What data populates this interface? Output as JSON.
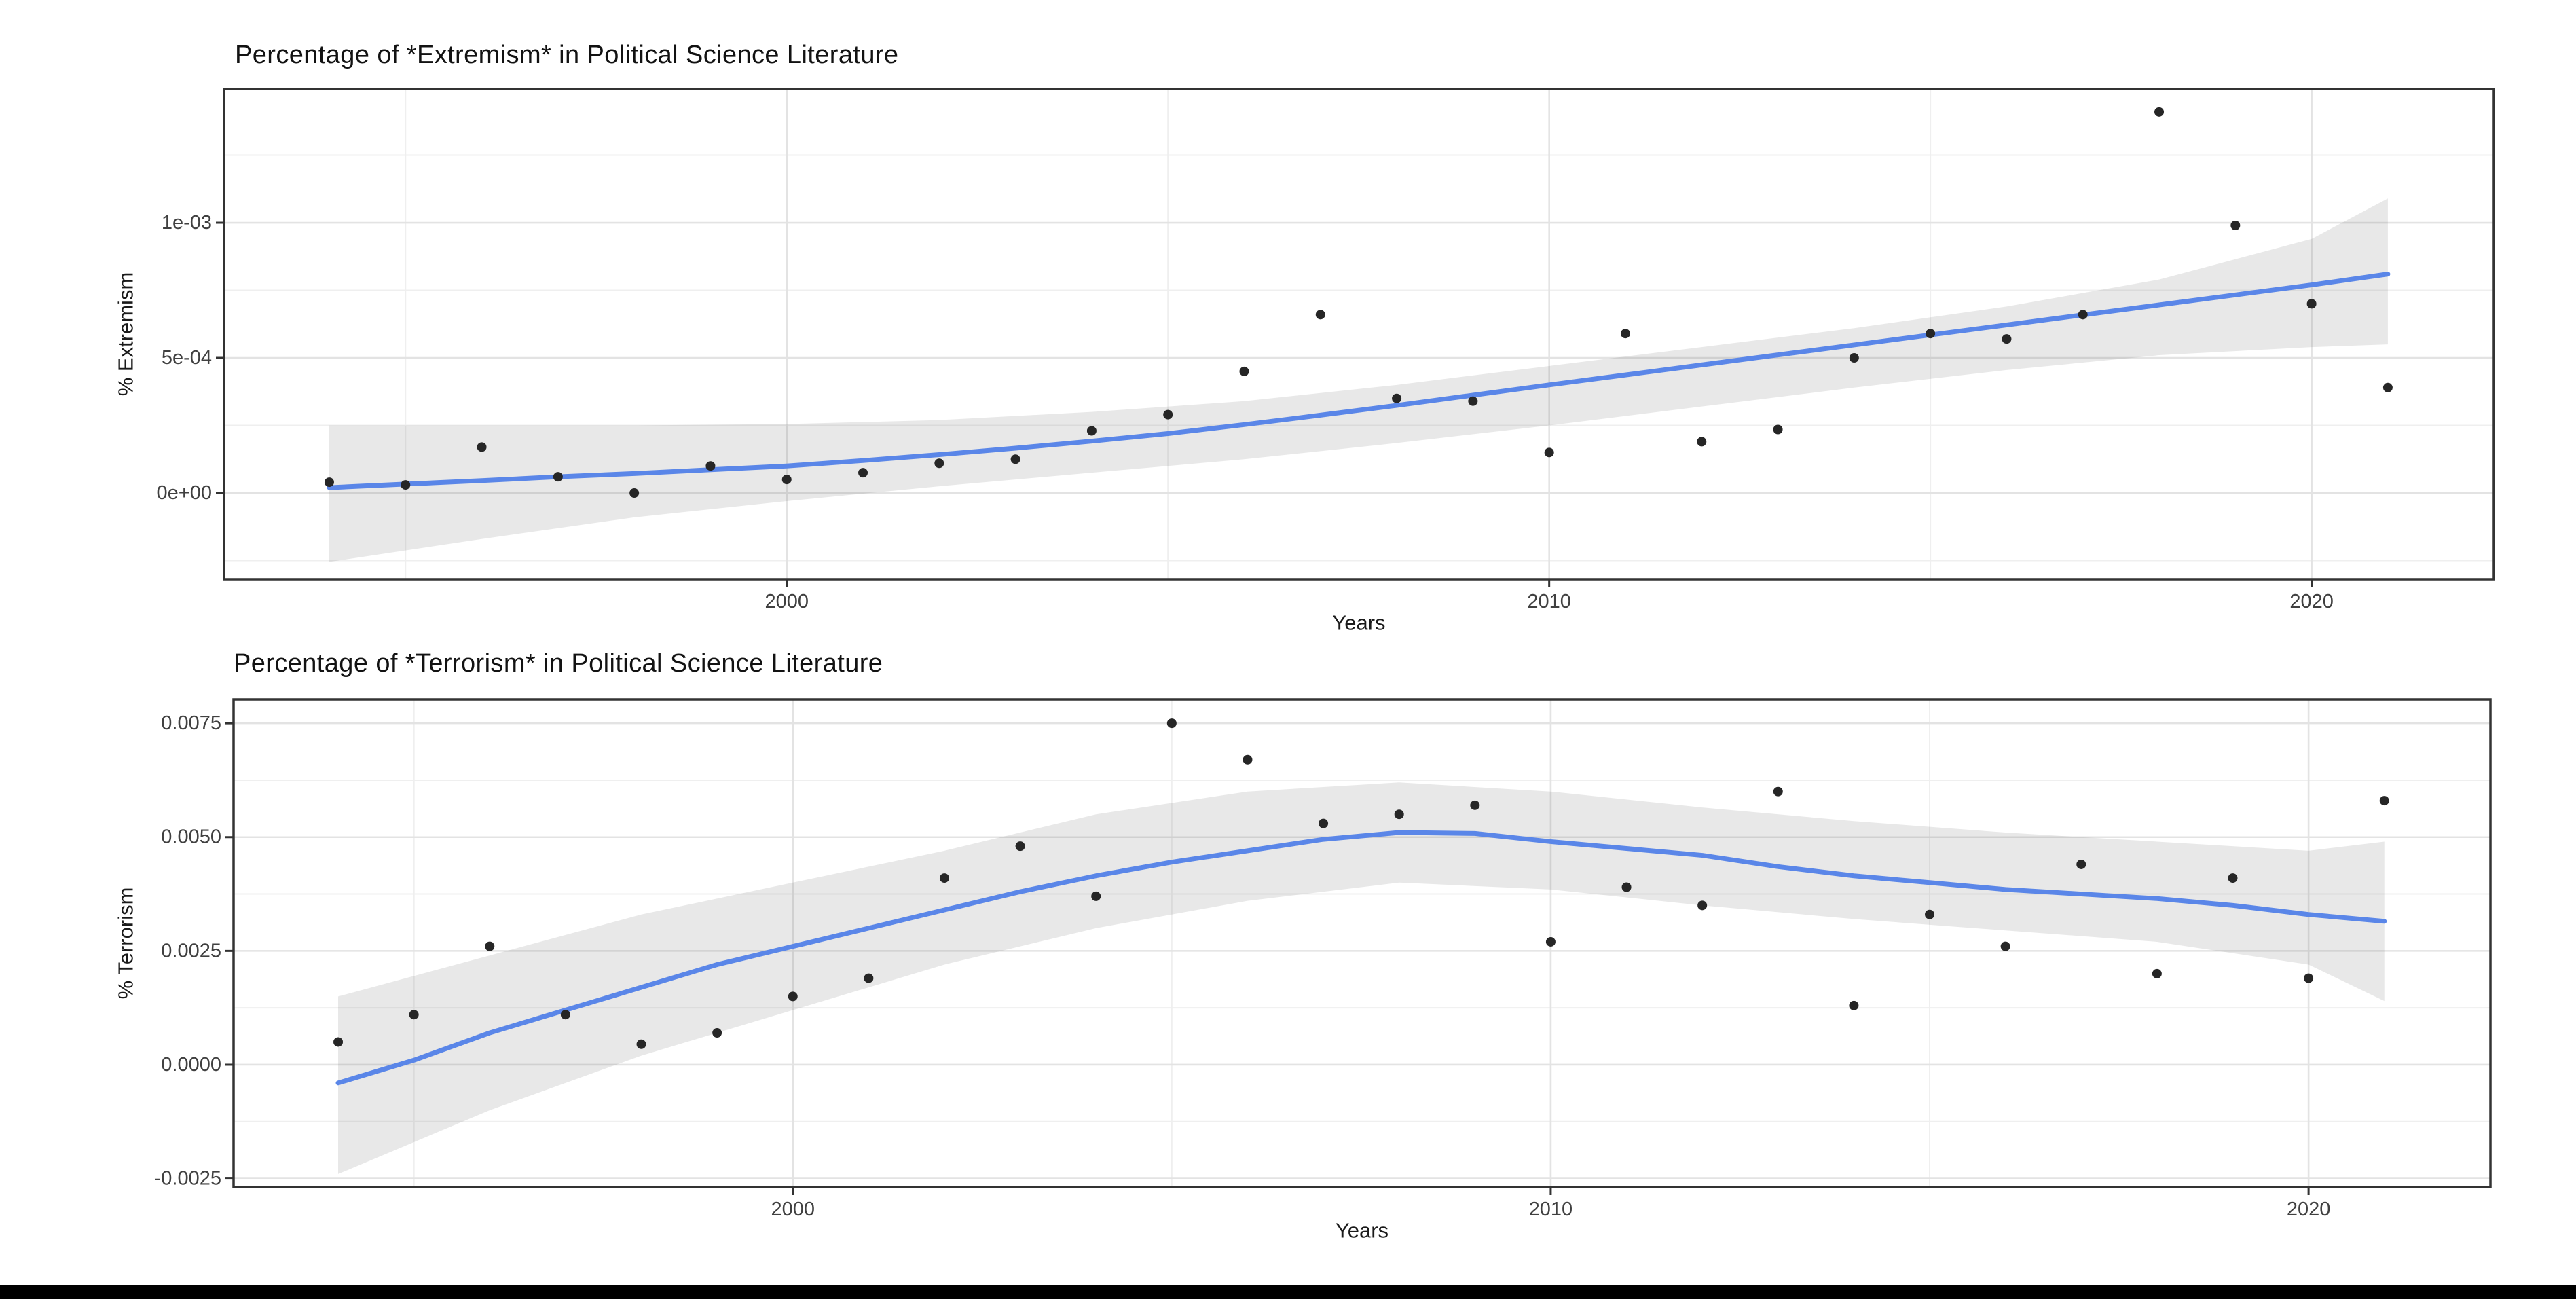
{
  "page": {
    "background": "#ffffff",
    "bottom_bar_color": "#000000"
  },
  "chart_data": [
    {
      "type": "scatter",
      "title": "Percentage of *Extremism* in Political Science Literature",
      "xlabel": "Years",
      "ylabel": "% Extremism",
      "legend": "none",
      "grid": "on",
      "xlim": [
        1992.62,
        2022.39
      ],
      "ylim": [
        -0.000319,
        0.001495
      ],
      "x_ticks": [
        {
          "value": 2000,
          "label": "2000"
        },
        {
          "value": 2010,
          "label": "2010"
        },
        {
          "value": 2020,
          "label": "2020"
        }
      ],
      "x_minor": [
        1995,
        2005,
        2015
      ],
      "y_ticks": [
        {
          "value": 0,
          "label": "0e+00"
        },
        {
          "value": 0.0005,
          "label": "5e-04"
        },
        {
          "value": 0.001,
          "label": "1e-03"
        }
      ],
      "y_minor": [
        -0.00025,
        0.00025,
        0.00075,
        0.00125
      ],
      "points": {
        "years": [
          1994,
          1995,
          1996,
          1997,
          1998,
          1999,
          2000,
          2001,
          2002,
          2003,
          2004,
          2005,
          2006,
          2007,
          2008,
          2009,
          2010,
          2011,
          2012,
          2013,
          2014,
          2015,
          2016,
          2017,
          2018,
          2019,
          2020,
          2021
        ],
        "values": [
          4e-05,
          3e-05,
          0.00017,
          6e-05,
          0.0,
          0.0001,
          5e-05,
          7.5e-05,
          0.00011,
          0.000125,
          0.00023,
          0.00029,
          0.00045,
          0.00066,
          0.00035,
          0.00034,
          0.00015,
          0.00059,
          0.00019,
          0.000235,
          0.0005,
          0.00059,
          0.00057,
          0.00066,
          0.00141,
          0.00099,
          0.0007,
          0.00039
        ]
      },
      "smooth_line": {
        "years": [
          1994,
          1995,
          1996,
          1997,
          1998,
          1999,
          2000,
          2001,
          2002,
          2003,
          2004,
          2005,
          2006,
          2007,
          2008,
          2009,
          2010,
          2011,
          2012,
          2013,
          2014,
          2015,
          2016,
          2017,
          2018,
          2019,
          2020,
          2021
        ],
        "values": [
          2e-05,
          3.3e-05,
          4.6e-05,
          6e-05,
          7.2e-05,
          8.6e-05,
          0.0001,
          0.00012,
          0.000142,
          0.000166,
          0.000192,
          0.00022,
          0.000253,
          0.000288,
          0.000324,
          0.000362,
          0.0004,
          0.000437,
          0.000474,
          0.000511,
          0.000548,
          0.000585,
          0.000622,
          0.000659,
          0.000696,
          0.000733,
          0.00077,
          0.00081
        ]
      },
      "ribbon": {
        "years": [
          1994,
          1996,
          1998,
          2000,
          2002,
          2004,
          2006,
          2008,
          2010,
          2012,
          2014,
          2016,
          2018,
          2020,
          2021
        ],
        "lower": [
          -0.000255,
          -0.00017,
          -9e-05,
          -3e-05,
          2.5e-05,
          7.5e-05,
          0.000125,
          0.000185,
          0.00025,
          0.00032,
          0.00039,
          0.000455,
          0.00051,
          0.00054,
          0.00055
        ],
        "upper": [
          0.00025,
          0.00025,
          0.00025,
          0.000255,
          0.00027,
          0.0003,
          0.00034,
          0.0004,
          0.00047,
          0.00054,
          0.00061,
          0.00069,
          0.00079,
          0.00094,
          0.00109
        ]
      },
      "colors": {
        "line": "#5a86e8",
        "ribbon": "rgba(110,110,110,0.16)",
        "point": "#262626",
        "grid_major": "#e3e3e3",
        "grid_minor": "#efefef",
        "panel_border": "#333333"
      }
    },
    {
      "type": "scatter",
      "title": "Percentage of *Terrorism* in Political Science Literature",
      "xlabel": "Years",
      "ylabel": "% Terrorism",
      "legend": "none",
      "grid": "on",
      "xlim": [
        1992.62,
        2022.4
      ],
      "ylim": [
        -0.002685,
        0.008024
      ],
      "x_ticks": [
        {
          "value": 2000,
          "label": "2000"
        },
        {
          "value": 2010,
          "label": "2010"
        },
        {
          "value": 2020,
          "label": "2020"
        }
      ],
      "x_minor": [
        1995,
        2005,
        2015
      ],
      "y_ticks": [
        {
          "value": -0.0025,
          "label": "-0.0025"
        },
        {
          "value": 0.0,
          "label": "0.0000"
        },
        {
          "value": 0.0025,
          "label": "0.0025"
        },
        {
          "value": 0.005,
          "label": "0.0050"
        },
        {
          "value": 0.0075,
          "label": "0.0075"
        }
      ],
      "y_minor": [
        -0.00125,
        0.00125,
        0.00375,
        0.00625
      ],
      "points": {
        "years": [
          1994,
          1995,
          1996,
          1997,
          1998,
          1999,
          2000,
          2001,
          2002,
          2003,
          2004,
          2005,
          2006,
          2007,
          2008,
          2009,
          2010,
          2011,
          2012,
          2013,
          2014,
          2015,
          2016,
          2017,
          2018,
          2019,
          2020,
          2021
        ],
        "values": [
          0.0005,
          0.0011,
          0.0026,
          0.0011,
          0.00045,
          0.0007,
          0.0015,
          0.0019,
          0.0041,
          0.0048,
          0.0037,
          0.0075,
          0.0067,
          0.0053,
          0.0055,
          0.0057,
          0.0027,
          0.0039,
          0.0035,
          0.006,
          0.0013,
          0.0033,
          0.0026,
          0.0044,
          0.002,
          0.0041,
          0.0019,
          0.0058
        ]
      },
      "smooth_line": {
        "years": [
          1994,
          1995,
          1996,
          1997,
          1998,
          1999,
          2000,
          2001,
          2002,
          2003,
          2004,
          2005,
          2006,
          2007,
          2008,
          2009,
          2010,
          2011,
          2012,
          2013,
          2014,
          2015,
          2016,
          2017,
          2018,
          2019,
          2020,
          2021
        ],
        "values": [
          -0.0004,
          0.0001,
          0.0007,
          0.0012,
          0.0017,
          0.0022,
          0.0026,
          0.003,
          0.0034,
          0.0038,
          0.00415,
          0.00445,
          0.0047,
          0.00495,
          0.0051,
          0.00508,
          0.0049,
          0.00475,
          0.0046,
          0.00435,
          0.00415,
          0.004,
          0.00385,
          0.00375,
          0.00365,
          0.0035,
          0.0033,
          0.00315
        ]
      },
      "ribbon": {
        "years": [
          1994,
          1996,
          1998,
          2000,
          2002,
          2004,
          2006,
          2008,
          2010,
          2012,
          2014,
          2016,
          2018,
          2020,
          2021
        ],
        "lower": [
          -0.0024,
          -0.001,
          0.0002,
          0.0012,
          0.0022,
          0.003,
          0.0036,
          0.004,
          0.00385,
          0.0035,
          0.0032,
          0.00295,
          0.0027,
          0.0022,
          0.0014
        ],
        "upper": [
          0.0015,
          0.0024,
          0.0033,
          0.004,
          0.0047,
          0.0055,
          0.006,
          0.0062,
          0.006,
          0.00565,
          0.00535,
          0.0051,
          0.0049,
          0.0047,
          0.0049
        ]
      },
      "colors": {
        "line": "#5a86e8",
        "ribbon": "rgba(110,110,110,0.16)",
        "point": "#262626",
        "grid_major": "#e3e3e3",
        "grid_minor": "#efefef",
        "panel_border": "#333333"
      }
    }
  ]
}
